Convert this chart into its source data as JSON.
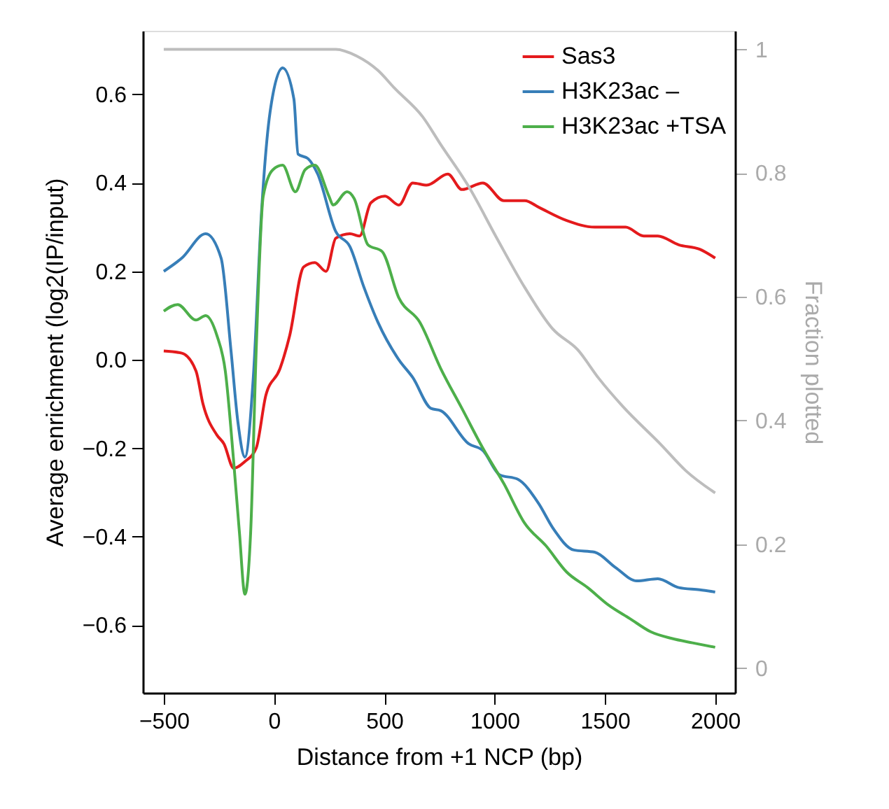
{
  "chart_data": {
    "type": "line",
    "xlabel": "Distance from +1 NCP (bp)",
    "ylabel": "Average enrichment (log2(IP/input)",
    "y2label": "Fraction plotted",
    "xlim": [
      -595,
      2090
    ],
    "xticks": [
      {
        "value": -500,
        "label": "−500"
      },
      0,
      500,
      1000,
      1500,
      2000
    ],
    "ylim": [
      -0.753,
      0.744
    ],
    "yticks": [
      {
        "value": -0.6,
        "label": "−0.6"
      },
      {
        "value": -0.4,
        "label": "−0.4"
      },
      {
        "value": -0.2,
        "label": "−0.2"
      },
      {
        "value": 0,
        "label": "0.0"
      },
      0.2,
      0.4,
      0.6
    ],
    "y2lim": [
      -0.04,
      1.03
    ],
    "y2ticks": [
      0,
      0.2,
      0.4,
      0.6,
      0.8,
      1
    ],
    "legend": "top right",
    "grid": false,
    "marker": "none",
    "line_style": "solid",
    "series": [
      {
        "name": "Sas3",
        "color": "#e41a1c",
        "x": [
          -500,
          -418,
          -354,
          -322,
          -259,
          -227,
          -183,
          -132,
          -81,
          -37,
          27,
          71,
          134,
          185,
          236,
          280,
          344,
          388,
          439,
          503,
          566,
          629,
          693,
          788,
          852,
          947,
          1042,
          1137,
          1200,
          1327,
          1454,
          1594,
          1676,
          1740,
          1835,
          1930,
          2000
        ],
        "values": [
          0.02,
          0.015,
          -0.025,
          -0.1,
          -0.17,
          -0.19,
          -0.245,
          -0.23,
          -0.2,
          -0.08,
          -0.02,
          0.055,
          0.21,
          0.22,
          0.2,
          0.275,
          0.285,
          0.28,
          0.355,
          0.37,
          0.35,
          0.4,
          0.395,
          0.42,
          0.385,
          0.4,
          0.36,
          0.36,
          0.345,
          0.315,
          0.3,
          0.3,
          0.28,
          0.28,
          0.26,
          0.25,
          0.23
        ]
      },
      {
        "name": "H3K23ac –",
        "color": "#377eb8",
        "x": [
          -500,
          -418,
          -310,
          -240,
          -195,
          -164,
          -132,
          -94,
          -56,
          -18,
          39,
          90,
          109,
          154,
          198,
          280,
          344,
          407,
          471,
          566,
          629,
          712,
          756,
          883,
          947,
          1023,
          1105,
          1200,
          1264,
          1359,
          1454,
          1549,
          1645,
          1740,
          1835,
          1930,
          2000
        ],
        "values": [
          0.2,
          0.23,
          0.285,
          0.23,
          0.02,
          -0.14,
          -0.22,
          -0.04,
          0.34,
          0.56,
          0.66,
          0.59,
          0.465,
          0.455,
          0.42,
          0.29,
          0.256,
          0.165,
          0.085,
          0.0,
          -0.04,
          -0.11,
          -0.115,
          -0.19,
          -0.205,
          -0.26,
          -0.27,
          -0.325,
          -0.38,
          -0.43,
          -0.435,
          -0.47,
          -0.5,
          -0.495,
          -0.515,
          -0.52,
          -0.525
        ]
      },
      {
        "name": "H3K23ac +TSA",
        "color": "#4daf4a",
        "x": [
          -500,
          -437,
          -354,
          -310,
          -259,
          -221,
          -183,
          -157,
          -132,
          -106,
          -81,
          -49,
          -5,
          39,
          97,
          141,
          185,
          249,
          268,
          331,
          363,
          426,
          490,
          566,
          661,
          756,
          852,
          947,
          1042,
          1137,
          1232,
          1327,
          1422,
          1518,
          1613,
          1708,
          1803,
          1898,
          2000
        ],
        "values": [
          0.11,
          0.125,
          0.09,
          0.1,
          0.055,
          -0.025,
          -0.23,
          -0.39,
          -0.53,
          -0.39,
          0.02,
          0.37,
          0.43,
          0.44,
          0.38,
          0.43,
          0.44,
          0.37,
          0.35,
          0.38,
          0.365,
          0.26,
          0.245,
          0.14,
          0.085,
          -0.02,
          -0.11,
          -0.2,
          -0.28,
          -0.37,
          -0.42,
          -0.48,
          -0.515,
          -0.555,
          -0.585,
          -0.615,
          -0.63,
          -0.64,
          -0.65
        ]
      },
      {
        "color": "#bdbdbd",
        "axis": "y2",
        "x": [
          -500,
          0,
          280,
          376,
          471,
          547,
          674,
          756,
          883,
          1010,
          1137,
          1264,
          1378,
          1473,
          1581,
          1752,
          1867,
          2000
        ],
        "values": [
          1.0,
          1.0,
          1.0,
          0.989,
          0.966,
          0.937,
          0.891,
          0.846,
          0.778,
          0.695,
          0.615,
          0.548,
          0.514,
          0.468,
          0.423,
          0.362,
          0.319,
          0.283
        ]
      }
    ]
  }
}
